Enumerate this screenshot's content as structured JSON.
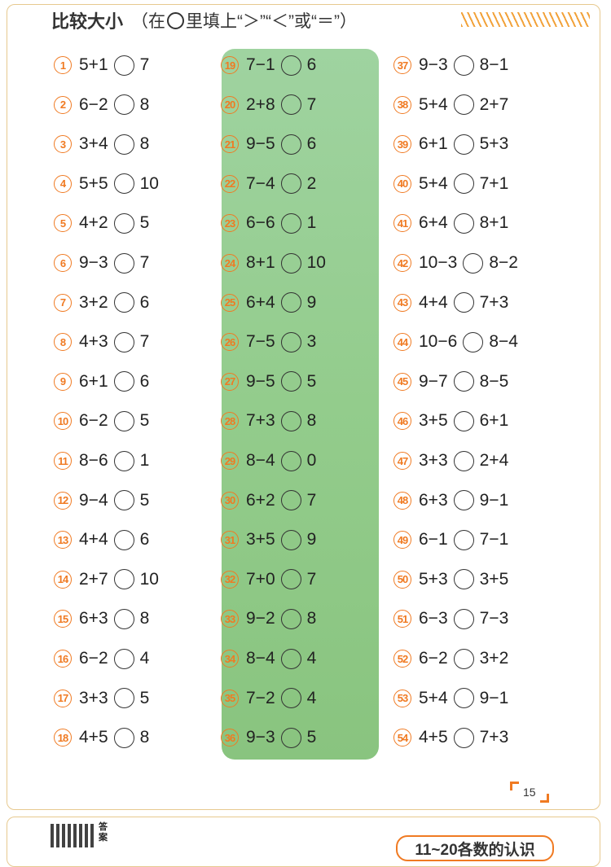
{
  "header": {
    "title_bold": "比较大小",
    "instr_open": "（在",
    "instr_rest": "里填上“＞”“＜”或“＝”）"
  },
  "columns": [
    [
      {
        "num": "1",
        "left": "5+1",
        "right": "7"
      },
      {
        "num": "2",
        "left": "6−2",
        "right": "8"
      },
      {
        "num": "3",
        "left": "3+4",
        "right": "8"
      },
      {
        "num": "4",
        "left": "5+5",
        "right": "10"
      },
      {
        "num": "5",
        "left": "4+2",
        "right": "5"
      },
      {
        "num": "6",
        "left": "9−3",
        "right": "7"
      },
      {
        "num": "7",
        "left": "3+2",
        "right": "6"
      },
      {
        "num": "8",
        "left": "4+3",
        "right": "7"
      },
      {
        "num": "9",
        "left": "6+1",
        "right": "6"
      },
      {
        "num": "10",
        "left": "6−2",
        "right": "5"
      },
      {
        "num": "11",
        "left": "8−6",
        "right": "1"
      },
      {
        "num": "12",
        "left": "9−4",
        "right": "5"
      },
      {
        "num": "13",
        "left": "4+4",
        "right": "6"
      },
      {
        "num": "14",
        "left": "2+7",
        "right": "10"
      },
      {
        "num": "15",
        "left": "6+3",
        "right": "8"
      },
      {
        "num": "16",
        "left": "6−2",
        "right": "4"
      },
      {
        "num": "17",
        "left": "3+3",
        "right": "5"
      },
      {
        "num": "18",
        "left": "4+5",
        "right": "8"
      }
    ],
    [
      {
        "num": "19",
        "left": "7−1",
        "right": "6"
      },
      {
        "num": "20",
        "left": "2+8",
        "right": "7"
      },
      {
        "num": "21",
        "left": "9−5",
        "right": "6"
      },
      {
        "num": "22",
        "left": "7−4",
        "right": "2"
      },
      {
        "num": "23",
        "left": "6−6",
        "right": "1"
      },
      {
        "num": "24",
        "left": "8+1",
        "right": "10"
      },
      {
        "num": "25",
        "left": "6+4",
        "right": "9"
      },
      {
        "num": "26",
        "left": "7−5",
        "right": "3"
      },
      {
        "num": "27",
        "left": "9−5",
        "right": "5"
      },
      {
        "num": "28",
        "left": "7+3",
        "right": "8"
      },
      {
        "num": "29",
        "left": "8−4",
        "right": "0"
      },
      {
        "num": "30",
        "left": "6+2",
        "right": "7"
      },
      {
        "num": "31",
        "left": "3+5",
        "right": "9"
      },
      {
        "num": "32",
        "left": "7+0",
        "right": "7"
      },
      {
        "num": "33",
        "left": "9−2",
        "right": "8"
      },
      {
        "num": "34",
        "left": "8−4",
        "right": "4"
      },
      {
        "num": "35",
        "left": "7−2",
        "right": "4"
      },
      {
        "num": "36",
        "left": "9−3",
        "right": "5"
      }
    ],
    [
      {
        "num": "37",
        "left": "9−3",
        "right": "8−1"
      },
      {
        "num": "38",
        "left": "5+4",
        "right": "2+7"
      },
      {
        "num": "39",
        "left": "6+1",
        "right": "5+3"
      },
      {
        "num": "40",
        "left": "5+4",
        "right": "7+1"
      },
      {
        "num": "41",
        "left": "6+4",
        "right": "8+1"
      },
      {
        "num": "42",
        "left": "10−3",
        "right": "8−2"
      },
      {
        "num": "43",
        "left": "4+4",
        "right": "7+3"
      },
      {
        "num": "44",
        "left": "10−6",
        "right": "8−4"
      },
      {
        "num": "45",
        "left": "9−7",
        "right": "8−5"
      },
      {
        "num": "46",
        "left": "3+5",
        "right": "6+1"
      },
      {
        "num": "47",
        "left": "3+3",
        "right": "2+4"
      },
      {
        "num": "48",
        "left": "6+3",
        "right": "9−1"
      },
      {
        "num": "49",
        "left": "6−1",
        "right": "7−1"
      },
      {
        "num": "50",
        "left": "5+3",
        "right": "3+5"
      },
      {
        "num": "51",
        "left": "6−3",
        "right": "7−3"
      },
      {
        "num": "52",
        "left": "6−2",
        "right": "3+2"
      },
      {
        "num": "53",
        "left": "5+4",
        "right": "9−1"
      },
      {
        "num": "54",
        "left": "4+5",
        "right": "7+3"
      }
    ]
  ],
  "page_number": "15",
  "footer": {
    "qr_label": "答案",
    "next_title": "11~20各数的认识"
  },
  "colors": {
    "accent": "#f07a22",
    "panel": "#93cc8c",
    "border": "#e7c98f"
  }
}
